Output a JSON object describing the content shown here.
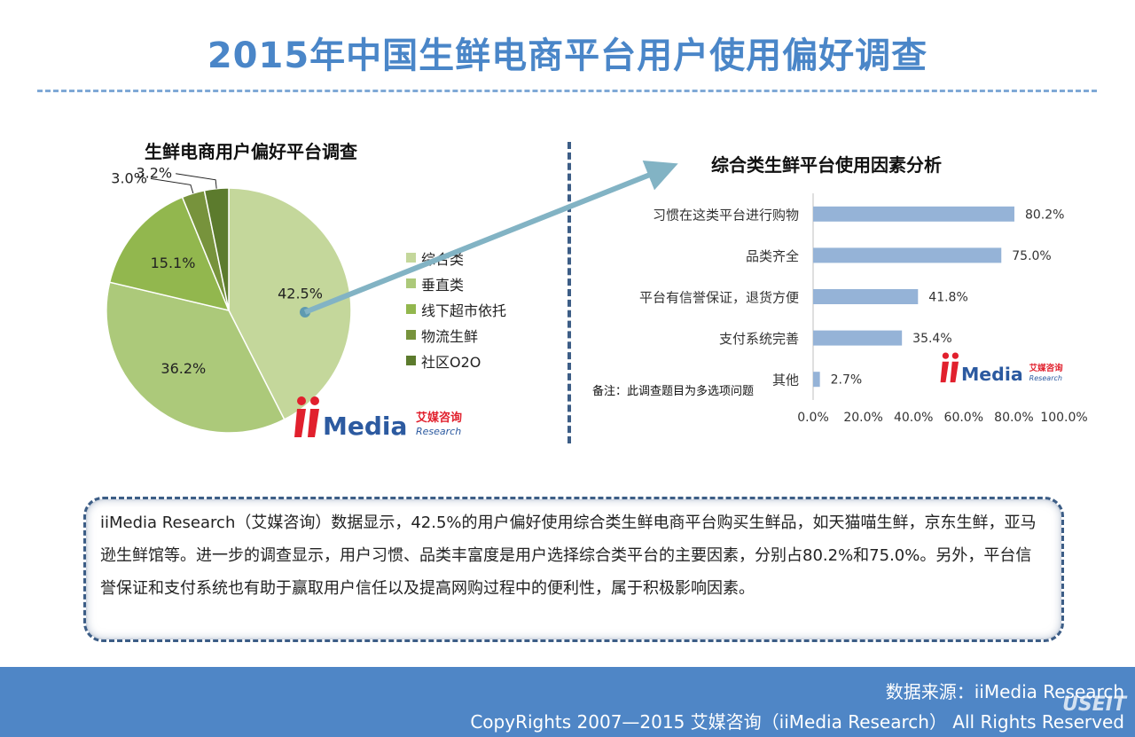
{
  "page_title": "2015年中国生鲜电商平台用户使用偏好调查",
  "colors": {
    "title": "#4a86c8",
    "bar": "#95b3d7",
    "footer": "#4f86c6",
    "arrow": "#82b3c4"
  },
  "chart_data": [
    {
      "type": "pie",
      "title": "生鲜电商用户偏好平台调查",
      "categories": [
        "综合类",
        "垂直类",
        "线下超市依托",
        "物流生鲜",
        "社区O2O"
      ],
      "values": [
        42.5,
        36.2,
        15.1,
        3.0,
        3.2
      ],
      "data_labels": [
        "42.5%",
        "36.2%",
        "15.1%",
        "3.0%",
        "3.2%"
      ],
      "colors": [
        "#c4d79b",
        "#acc97a",
        "#92b74e",
        "#77933c",
        "#5c7b2d"
      ],
      "legend_position": "right"
    },
    {
      "type": "bar",
      "orientation": "horizontal",
      "title": "综合类生鲜平台使用因素分析",
      "categories": [
        "习惯在这类平台进行购物",
        "品类齐全",
        "平台有信誉保证，退货方便",
        "支付系统完善",
        "其他"
      ],
      "values": [
        80.2,
        75.0,
        41.8,
        35.4,
        2.7
      ],
      "data_labels": [
        "80.2%",
        "75.0%",
        "41.8%",
        "35.4%",
        "2.7%"
      ],
      "xlim": [
        0,
        100
      ],
      "xticks": [
        "0.0%",
        "20.0%",
        "40.0%",
        "60.0%",
        "80.0%",
        "100.0%"
      ],
      "grid": false
    }
  ],
  "note": "备注：此调查题目为多选项问题",
  "logo": {
    "brand": "iiMedia",
    "cn": "艾媒咨询",
    "sub": "Research"
  },
  "summary": "iiMedia Research（艾媒咨询）数据显示，42.5%的用户偏好使用综合类生鲜电商平台购买生鲜品，如天猫喵生鲜，京东生鲜，亚马逊生鲜馆等。进一步的调查显示，用户习惯、品类丰富度是用户选择综合类平台的主要因素，分别占80.2%和75.0%。另外，平台信誉保证和支付系统也有助于赢取用户信任以及提高网购过程中的便利性，属于积极影响因素。",
  "footer": {
    "source": "数据来源：iiMedia Research",
    "copyright": "CopyRights 2007—2015 艾媒咨询（iiMedia Research） All Rights Reserved",
    "watermark": "USEIT"
  }
}
